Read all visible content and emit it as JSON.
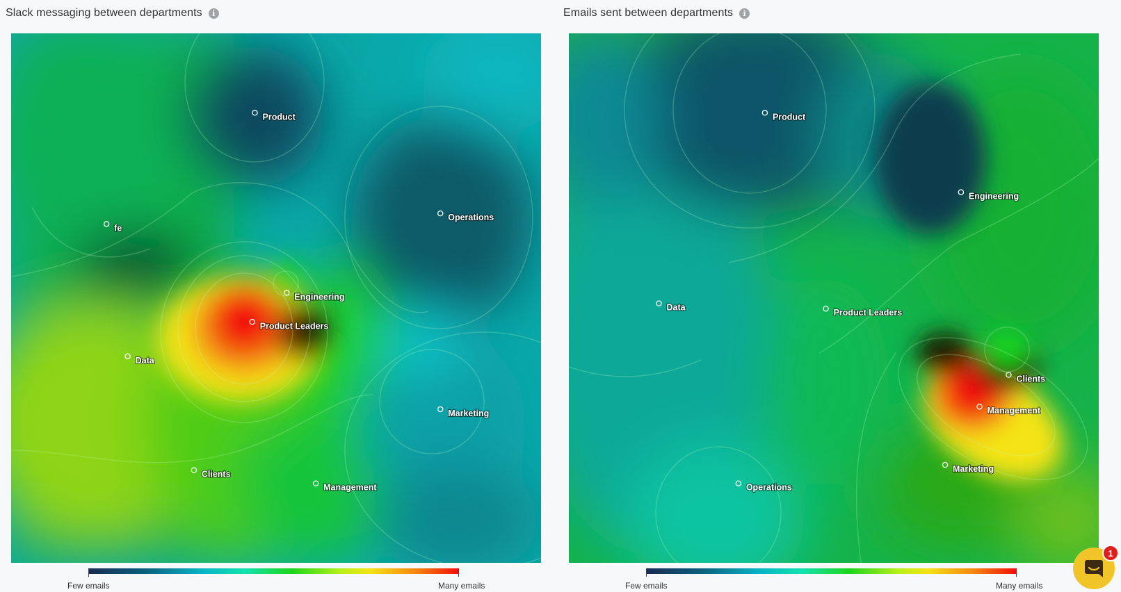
{
  "chart_data": [
    {
      "type": "heatmap",
      "title": "Slack messaging between departments",
      "nodes": [
        {
          "label": "Product",
          "x": 0.46,
          "y": 0.15
        },
        {
          "label": "fe",
          "x": 0.18,
          "y": 0.36
        },
        {
          "label": "Operations",
          "x": 0.81,
          "y": 0.34
        },
        {
          "label": "Engineering",
          "x": 0.52,
          "y": 0.49
        },
        {
          "label": "Product Leaders",
          "x": 0.455,
          "y": 0.545
        },
        {
          "label": "Data",
          "x": 0.22,
          "y": 0.61
        },
        {
          "label": "Marketing",
          "x": 0.81,
          "y": 0.71
        },
        {
          "label": "Clients",
          "x": 0.345,
          "y": 0.825
        },
        {
          "label": "Management",
          "x": 0.575,
          "y": 0.85
        }
      ],
      "colorbar": {
        "min_label": "Few emails",
        "max_label": "Many emails"
      }
    },
    {
      "type": "heatmap",
      "title": "Emails sent between departments",
      "nodes": [
        {
          "label": "Product",
          "x": 0.37,
          "y": 0.15
        },
        {
          "label": "Engineering",
          "x": 0.74,
          "y": 0.3
        },
        {
          "label": "Data",
          "x": 0.17,
          "y": 0.51
        },
        {
          "label": "Product Leaders",
          "x": 0.485,
          "y": 0.52
        },
        {
          "label": "Clients",
          "x": 0.83,
          "y": 0.645
        },
        {
          "label": "Management",
          "x": 0.775,
          "y": 0.705
        },
        {
          "label": "Marketing",
          "x": 0.71,
          "y": 0.815
        },
        {
          "label": "Operations",
          "x": 0.32,
          "y": 0.85
        }
      ],
      "colorbar": {
        "min_label": "Few emails",
        "max_label": "Many emails"
      }
    }
  ],
  "chat": {
    "badge_count": "1"
  },
  "colors": {
    "low": "#1a2a55",
    "mid": "#1fd51a",
    "high": "#f20d0d",
    "chat": "#f1c52a",
    "badge": "#e01d1d"
  }
}
